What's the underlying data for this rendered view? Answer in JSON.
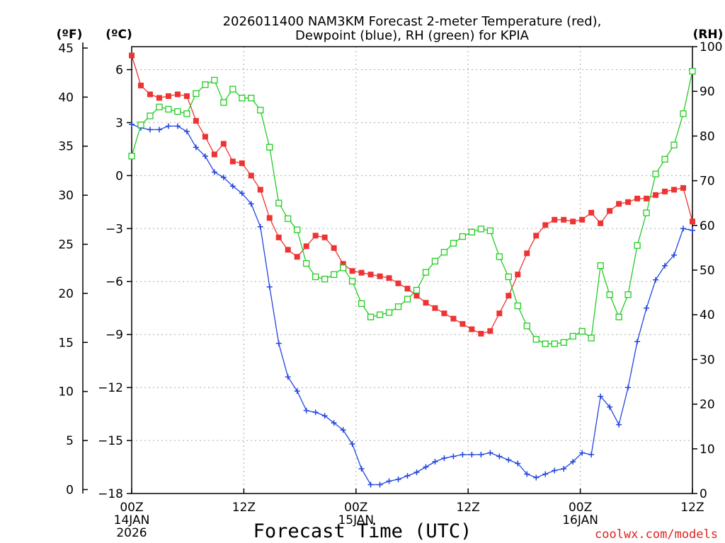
{
  "chart_data": {
    "type": "line",
    "title_line1": "2026011400 NAM3KM Forecast 2-meter Temperature (red),",
    "title_line2": "Dewpoint (blue), RH (green) for KPIA",
    "xlabel": "Forecast Time (UTC)",
    "credit": "coolwx.com/models",
    "units": {
      "fahrenheit": "(ºF)",
      "celsius": "(ºC)",
      "rh": "(RH)"
    },
    "x_range_hours": [
      0,
      60
    ],
    "celsius_range": [
      -18.0,
      7.3
    ],
    "rh_range": [
      0,
      100
    ],
    "grid": true,
    "x_ticks": [
      {
        "hour": 0,
        "label": "00Z",
        "date": "14JAN",
        "year": "2026"
      },
      {
        "hour": 12,
        "label": "12Z"
      },
      {
        "hour": 24,
        "label": "00Z",
        "date": "15JAN"
      },
      {
        "hour": 36,
        "label": "12Z"
      },
      {
        "hour": 48,
        "label": "00Z",
        "date": "16JAN"
      },
      {
        "hour": 60,
        "label": "12Z"
      }
    ],
    "celsius_ticks": [
      6,
      3,
      0,
      -3,
      -6,
      -9,
      -12,
      -15,
      -18
    ],
    "celsius_tick_labels": [
      "6",
      "3",
      "0",
      "−3",
      "−6",
      "−9",
      "−12",
      "−15",
      "−18"
    ],
    "fahrenheit_ticks": [
      45,
      40,
      35,
      30,
      25,
      20,
      15,
      10,
      5,
      0
    ],
    "fahrenheit_tick_labels": [
      "45",
      "40",
      "35",
      "30",
      "25",
      "20",
      "15",
      "10",
      "5",
      "0"
    ],
    "rh_ticks": [
      100,
      90,
      80,
      70,
      60,
      50,
      40,
      30,
      20,
      10,
      0
    ],
    "rh_tick_labels": [
      "100",
      "90",
      "80",
      "70",
      "60",
      "50",
      "40",
      "30",
      "20",
      "10",
      "0"
    ],
    "series": [
      {
        "name": "2-meter Temperature",
        "unit": "C",
        "color": "#ee3333",
        "marker": "filled-square",
        "values": [
          6.8,
          5.1,
          4.6,
          4.4,
          4.5,
          4.6,
          4.5,
          3.1,
          2.2,
          1.2,
          1.8,
          0.8,
          0.7,
          0.0,
          -0.8,
          -2.4,
          -3.5,
          -4.2,
          -4.6,
          -4.0,
          -3.4,
          -3.5,
          -4.1,
          -5.0,
          -5.4,
          -5.5,
          -5.6,
          -5.7,
          -5.8,
          -6.1,
          -6.4,
          -6.8,
          -7.2,
          -7.5,
          -7.8,
          -8.1,
          -8.4,
          -8.7,
          -8.95,
          -8.8,
          -7.8,
          -6.8,
          -5.6,
          -4.4,
          -3.4,
          -2.8,
          -2.5,
          -2.5,
          -2.6,
          -2.5,
          -2.1,
          -2.7,
          -2.0,
          -1.6,
          -1.5,
          -1.3,
          -1.3,
          -1.1,
          -0.9,
          -0.8,
          -0.7,
          -2.6
        ]
      },
      {
        "name": "Dewpoint",
        "unit": "C",
        "color": "#2244dd",
        "marker": "plus",
        "values": [
          2.9,
          2.7,
          2.6,
          2.6,
          2.8,
          2.8,
          2.5,
          1.6,
          1.1,
          0.2,
          -0.1,
          -0.6,
          -1.0,
          -1.6,
          -2.9,
          -6.3,
          -9.5,
          -11.4,
          -12.2,
          -13.3,
          -13.4,
          -13.6,
          -14.0,
          -14.4,
          -15.2,
          -16.6,
          -17.5,
          -17.5,
          -17.3,
          -17.2,
          -17.0,
          -16.8,
          -16.5,
          -16.2,
          -16.0,
          -15.9,
          -15.8,
          -15.8,
          -15.8,
          -15.7,
          -15.9,
          -16.1,
          -16.3,
          -16.9,
          -17.1,
          -16.9,
          -16.7,
          -16.6,
          -16.2,
          -15.7,
          -15.8,
          -12.5,
          -13.1,
          -14.1,
          -12.0,
          -9.4,
          -7.5,
          -5.9,
          -5.1,
          -4.5,
          -3.0,
          -3.1
        ]
      },
      {
        "name": "RH",
        "unit": "%",
        "color": "#22cc22",
        "marker": "open-square",
        "values": [
          75.5,
          82.5,
          84.5,
          86.5,
          86.0,
          85.5,
          85.0,
          89.5,
          91.5,
          92.5,
          87.5,
          90.5,
          88.5,
          88.5,
          85.8,
          77.5,
          65.0,
          61.5,
          59.0,
          51.5,
          48.5,
          48.0,
          49.0,
          50.5,
          47.5,
          42.5,
          39.5,
          40.0,
          40.5,
          41.8,
          43.5,
          45.5,
          49.5,
          52.0,
          54.0,
          56.0,
          57.5,
          58.5,
          59.2,
          58.8,
          53.0,
          48.5,
          42.0,
          37.5,
          34.5,
          33.5,
          33.5,
          33.8,
          35.2,
          36.3,
          34.8,
          51.0,
          44.5,
          39.5,
          44.5,
          55.5,
          62.8,
          71.5,
          74.8,
          78.0,
          85.0,
          94.5
        ]
      }
    ]
  }
}
